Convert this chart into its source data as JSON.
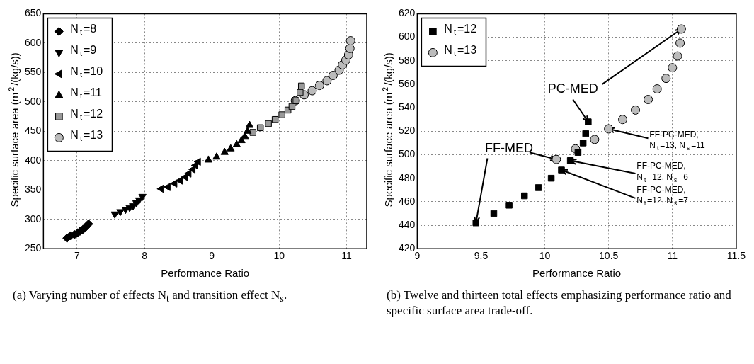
{
  "chart_data": [
    {
      "type": "scatter",
      "xlabel": "Performance Ratio",
      "ylabel": "Specific surface area (m$^{2}$/(kg/s))",
      "xlim": [
        6.5,
        11.3
      ],
      "xticks": [
        7,
        8,
        9,
        10,
        11
      ],
      "ylim": [
        250,
        650
      ],
      "yticks": [
        250,
        300,
        350,
        400,
        450,
        500,
        550,
        600,
        650
      ],
      "grid": true,
      "legend": "top left",
      "annotations": [
        "(a) Varying number of effects N$_{t}$ and transition effect N$_{s}$."
      ],
      "series": [
        {
          "name": "N$_{t}$=8",
          "color": "#000000",
          "marker": "diamond",
          "x": [
            6.85,
            6.9,
            6.96,
            7.01,
            7.05,
            7.09,
            7.13,
            7.17
          ],
          "values": [
            268,
            272,
            274,
            277,
            280,
            283,
            287,
            292
          ]
        },
        {
          "name": "N$_{t}$=9",
          "color": "#000000",
          "marker": "triangle-down",
          "x": [
            7.56,
            7.64,
            7.72,
            7.78,
            7.83,
            7.88,
            7.92,
            7.97
          ],
          "values": [
            309,
            313,
            317,
            320,
            323,
            328,
            333,
            339
          ]
        },
        {
          "name": "N$_{t}$=10",
          "color": "#000000",
          "marker": "triangle-left",
          "x": [
            8.25,
            8.35,
            8.45,
            8.53,
            8.61,
            8.66,
            8.72,
            8.76,
            8.8
          ],
          "values": [
            352,
            355,
            361,
            366,
            372,
            378,
            385,
            392,
            398
          ]
        },
        {
          "name": "N$_{t}$=11",
          "color": "#000000",
          "marker": "triangle",
          "x": [
            8.95,
            9.07,
            9.19,
            9.28,
            9.37,
            9.44,
            9.49,
            9.53,
            9.56
          ],
          "values": [
            401,
            406,
            414,
            420,
            427,
            434,
            441,
            450,
            460
          ]
        },
        {
          "name": "N$_{t}$=12",
          "color": "#999999",
          "marker": "square",
          "x": [
            9.61,
            9.72,
            9.84,
            9.94,
            10.04,
            10.13,
            10.19,
            10.25,
            10.31,
            10.33
          ],
          "values": [
            448,
            456,
            463,
            470,
            478,
            486,
            492,
            502,
            516,
            527
          ]
        },
        {
          "name": "N$_{t}$=13",
          "color": "#bbbbbb",
          "marker": "circle",
          "x": [
            10.24,
            10.37,
            10.49,
            10.6,
            10.71,
            10.8,
            10.89,
            10.94,
            10.99,
            11.03,
            11.05,
            11.06
          ],
          "values": [
            502,
            512,
            519,
            528,
            536,
            545,
            554,
            563,
            571,
            580,
            591,
            604
          ]
        }
      ]
    },
    {
      "type": "scatter",
      "xlabel": "Performance Ratio",
      "ylabel": "Specific surface area (m$^{2}$/(kg/s))",
      "xlim": [
        9,
        11.5
      ],
      "xticks": [
        9,
        9.5,
        10,
        10.5,
        11,
        11.5
      ],
      "ylim": [
        420,
        620
      ],
      "yticks": [
        420,
        440,
        460,
        480,
        500,
        520,
        540,
        560,
        580,
        600,
        620
      ],
      "grid": true,
      "legend": "top left",
      "annotations": [
        "(b) Twelve and thirteen total effects emphasizing performance ratio and specific surface area trade-off.",
        {
          "text": "FF-MED",
          "x": 9.46,
          "y": 442
        },
        {
          "text": "PC-MED",
          "x": 10.34,
          "y": 528
        },
        {
          "text": "FF-PC-MED,\nN$_{t}$=13, N$_{s}$=11",
          "x": 10.5,
          "y": 522
        },
        {
          "text": "FF-PC-MED,\nN$_{t}$=12, N$_{s}$=6",
          "x": 10.2,
          "y": 495
        },
        {
          "text": "FF-PC-MED,\nN$_{t}$=12, N$_{s}$=7",
          "x": 10.13,
          "y": 487
        }
      ],
      "series": [
        {
          "name": "N$_{t}$=12",
          "color": "#000000",
          "marker": "square",
          "x": [
            9.46,
            9.6,
            9.72,
            9.84,
            9.95,
            10.05,
            10.13,
            10.2,
            10.26,
            10.3,
            10.32,
            10.34
          ],
          "values": [
            442,
            450,
            457,
            465,
            472,
            480,
            487,
            495,
            502,
            510,
            518,
            528
          ]
        },
        {
          "name": "N$_{t}$=13",
          "color": "#bbbbbb",
          "marker": "circle",
          "x": [
            10.09,
            10.24,
            10.39,
            10.5,
            10.61,
            10.71,
            10.81,
            10.88,
            10.95,
            11,
            11.04,
            11.06,
            11.07
          ],
          "values": [
            496,
            505,
            513,
            522,
            530,
            538,
            547,
            556,
            565,
            574,
            584,
            595,
            607
          ]
        }
      ]
    }
  ]
}
